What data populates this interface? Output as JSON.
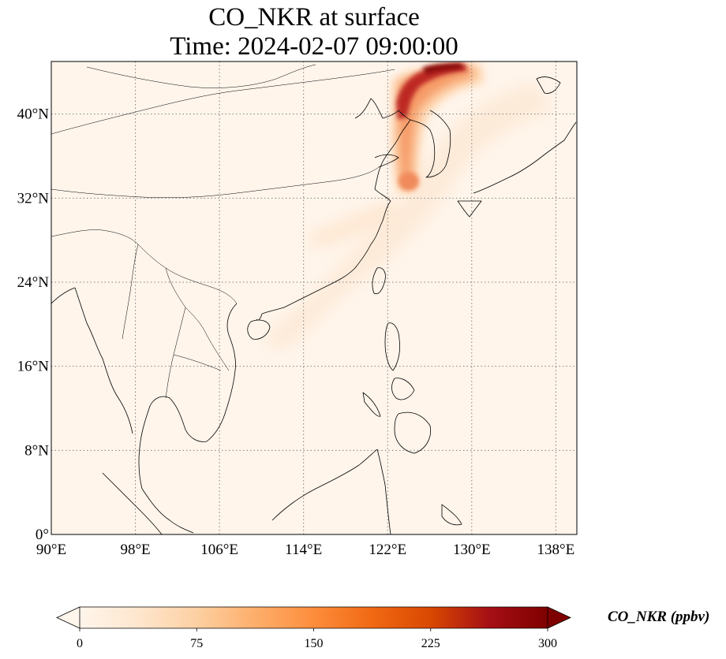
{
  "title": {
    "line1": "CO_NKR at surface",
    "line2": "Time: 2024-02-07 09:00:00"
  },
  "map": {
    "lon_range": [
      90,
      140
    ],
    "lat_range": [
      0,
      45
    ],
    "lat_ticks": [
      {
        "value": 0,
        "label": "0°"
      },
      {
        "value": 8,
        "label": "8°N"
      },
      {
        "value": 16,
        "label": "16°N"
      },
      {
        "value": 24,
        "label": "24°N"
      },
      {
        "value": 32,
        "label": "32°N"
      },
      {
        "value": 40,
        "label": "40°N"
      }
    ],
    "lon_ticks": [
      {
        "value": 90,
        "label": "90°E"
      },
      {
        "value": 98,
        "label": "98°E"
      },
      {
        "value": 106,
        "label": "106°E"
      },
      {
        "value": 114,
        "label": "114°E"
      },
      {
        "value": 122,
        "label": "122°E"
      },
      {
        "value": 130,
        "label": "130°E"
      },
      {
        "value": 138,
        "label": "138°E"
      }
    ],
    "gridlines": true,
    "background_color": "#fff5eb",
    "coastline_color": "#000000"
  },
  "colorbar": {
    "label": "CO_NKR (ppbv)",
    "min": 0,
    "max": 300,
    "extend": "both",
    "colormap": "OrRd",
    "ticks": [
      {
        "value": 0,
        "label": "0"
      },
      {
        "value": 75,
        "label": "75"
      },
      {
        "value": 150,
        "label": "150"
      },
      {
        "value": 225,
        "label": "225"
      },
      {
        "value": 300,
        "label": "300"
      }
    ],
    "stops": [
      "#fff5eb",
      "#fee6ce",
      "#fdd0a2",
      "#fdae6b",
      "#fd8d3c",
      "#f16913",
      "#d94801",
      "#a50f15",
      "#7f0000"
    ]
  }
}
